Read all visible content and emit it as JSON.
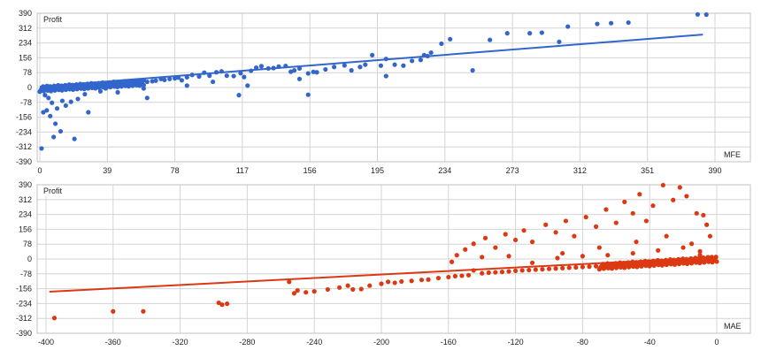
{
  "colors": {
    "mfe": "#3366cc",
    "mae": "#dc3912",
    "grid": "#d4d4d4"
  },
  "chart_data": [
    {
      "type": "scatter",
      "ylabel": "Profit",
      "xlabel": "MFE",
      "xlim": [
        0,
        390
      ],
      "ylim": [
        -390,
        390
      ],
      "xticks": [
        0,
        39,
        78,
        117,
        156,
        195,
        234,
        273,
        312,
        351,
        390
      ],
      "yticks": [
        390,
        312,
        234,
        156,
        78,
        0,
        -78,
        -156,
        -234,
        -312,
        -390
      ],
      "grid": true,
      "trend": {
        "x": [
          0,
          383
        ],
        "y": [
          4,
          278
        ]
      },
      "points": [
        [
          380,
          384
        ],
        [
          385,
          383
        ],
        [
          340,
          341
        ],
        [
          330,
          338
        ],
        [
          322,
          334
        ],
        [
          305,
          320
        ],
        [
          290,
          288
        ],
        [
          283,
          285
        ],
        [
          270,
          285
        ],
        [
          260,
          250
        ],
        [
          237,
          254
        ],
        [
          232,
          230
        ],
        [
          226,
          183
        ],
        [
          224,
          165
        ],
        [
          222,
          170
        ],
        [
          220,
          145
        ],
        [
          215,
          140
        ],
        [
          210,
          115
        ],
        [
          205,
          120
        ],
        [
          200,
          150
        ],
        [
          197,
          115
        ],
        [
          192,
          170
        ],
        [
          188,
          120
        ],
        [
          185,
          108
        ],
        [
          180,
          90
        ],
        [
          176,
          116
        ],
        [
          170,
          108
        ],
        [
          165,
          95
        ],
        [
          160,
          80
        ],
        [
          158,
          82
        ],
        [
          155,
          74
        ],
        [
          150,
          100
        ],
        [
          147,
          90
        ],
        [
          145,
          83
        ],
        [
          142,
          113
        ],
        [
          138,
          110
        ],
        [
          135,
          102
        ],
        [
          132,
          100
        ],
        [
          128,
          112
        ],
        [
          125,
          104
        ],
        [
          122,
          88
        ],
        [
          118,
          55
        ],
        [
          116,
          75
        ],
        [
          112,
          60
        ],
        [
          108,
          62
        ],
        [
          105,
          85
        ],
        [
          102,
          80
        ],
        [
          98,
          62
        ],
        [
          95,
          78
        ],
        [
          92,
          58
        ],
        [
          88,
          66
        ],
        [
          85,
          54
        ],
        [
          82,
          38
        ],
        [
          80,
          52
        ],
        [
          78,
          48
        ],
        [
          75,
          45
        ],
        [
          72,
          40
        ],
        [
          70,
          45
        ],
        [
          67,
          36
        ],
        [
          65,
          33
        ],
        [
          62,
          30
        ],
        [
          60,
          38
        ],
        [
          57,
          28
        ],
        [
          55,
          26
        ],
        [
          52,
          24
        ],
        [
          50,
          22
        ],
        [
          48,
          20
        ],
        [
          45,
          18
        ],
        [
          42,
          16
        ],
        [
          40,
          14
        ],
        [
          38,
          12
        ],
        [
          35,
          12
        ],
        [
          33,
          10
        ],
        [
          30,
          8
        ],
        [
          28,
          6
        ],
        [
          26,
          5
        ],
        [
          24,
          4
        ],
        [
          22,
          3
        ],
        [
          20,
          2
        ],
        [
          18,
          0
        ],
        [
          16,
          -2
        ],
        [
          14,
          -3
        ],
        [
          12,
          -4
        ],
        [
          10,
          -5
        ],
        [
          8,
          -6
        ],
        [
          6,
          -4
        ],
        [
          4,
          -3
        ],
        [
          2,
          -2
        ],
        [
          3,
          -40
        ],
        [
          5,
          -55
        ],
        [
          7,
          -80
        ],
        [
          4,
          -120
        ],
        [
          6,
          -150
        ],
        [
          9,
          -190
        ],
        [
          12,
          -230
        ],
        [
          2,
          -130
        ],
        [
          1,
          -320
        ],
        [
          8,
          -260
        ],
        [
          20,
          -270
        ],
        [
          28,
          -130
        ],
        [
          15,
          -95
        ],
        [
          18,
          -75
        ],
        [
          22,
          -60
        ],
        [
          10,
          -110
        ],
        [
          13,
          -70
        ],
        [
          26,
          -35
        ],
        [
          35,
          -20
        ],
        [
          38,
          -5
        ],
        [
          60,
          -5
        ],
        [
          115,
          -40
        ],
        [
          155,
          -38
        ],
        [
          100,
          30
        ],
        [
          150,
          45
        ],
        [
          120,
          10
        ],
        [
          200,
          60
        ],
        [
          250,
          90
        ],
        [
          300,
          240
        ],
        [
          62,
          -55
        ],
        [
          45,
          -25
        ],
        [
          85,
          10
        ]
      ]
    },
    {
      "type": "scatter",
      "ylabel": "Profit",
      "xlabel": "MAE",
      "xlim": [
        -400,
        0
      ],
      "ylim": [
        -390,
        390
      ],
      "xticks": [
        -400,
        -360,
        -320,
        -280,
        -240,
        -200,
        -160,
        -120,
        -80,
        -40,
        0
      ],
      "yticks": [
        390,
        312,
        234,
        156,
        78,
        0,
        -78,
        -156,
        -234,
        -312,
        -390
      ],
      "grid": true,
      "trend": {
        "x": [
          -398,
          0
        ],
        "y": [
          -172,
          10
        ]
      },
      "points": [
        [
          -395,
          -310
        ],
        [
          -360,
          -275
        ],
        [
          -342,
          -275
        ],
        [
          -297,
          -230
        ],
        [
          -295,
          -240
        ],
        [
          -292,
          -235
        ],
        [
          -255,
          -120
        ],
        [
          -252,
          -180
        ],
        [
          -250,
          -165
        ],
        [
          -245,
          -175
        ],
        [
          -240,
          -170
        ],
        [
          -232,
          -160
        ],
        [
          -225,
          -150
        ],
        [
          -220,
          -140
        ],
        [
          -217,
          -160
        ],
        [
          -212,
          -158
        ],
        [
          -207,
          -140
        ],
        [
          -200,
          -130
        ],
        [
          -196,
          -120
        ],
        [
          -192,
          -125
        ],
        [
          -188,
          -118
        ],
        [
          -182,
          -115
        ],
        [
          -176,
          -110
        ],
        [
          -172,
          -108
        ],
        [
          -166,
          -100
        ],
        [
          -160,
          -95
        ],
        [
          -156,
          -90
        ],
        [
          -152,
          -88
        ],
        [
          -148,
          -85
        ],
        [
          -145,
          -60
        ],
        [
          -140,
          -75
        ],
        [
          -136,
          -72
        ],
        [
          -132,
          -70
        ],
        [
          -128,
          -68
        ],
        [
          -124,
          -65
        ],
        [
          -120,
          -62
        ],
        [
          -116,
          -60
        ],
        [
          -112,
          -58
        ],
        [
          -108,
          -56
        ],
        [
          -104,
          -54
        ],
        [
          -100,
          -52
        ],
        [
          -96,
          -50
        ],
        [
          -92,
          -48
        ],
        [
          -88,
          -46
        ],
        [
          -84,
          -44
        ],
        [
          -80,
          -42
        ],
        [
          -76,
          -40
        ],
        [
          -72,
          -38
        ],
        [
          -68,
          -36
        ],
        [
          -64,
          -34
        ],
        [
          -60,
          -32
        ],
        [
          -56,
          -30
        ],
        [
          -52,
          -28
        ],
        [
          -48,
          -26
        ],
        [
          -44,
          -24
        ],
        [
          -40,
          -22
        ],
        [
          -36,
          -20
        ],
        [
          -32,
          -18
        ],
        [
          -28,
          -16
        ],
        [
          -24,
          -14
        ],
        [
          -20,
          -12
        ],
        [
          -16,
          -10
        ],
        [
          -12,
          -8
        ],
        [
          -8,
          -6
        ],
        [
          -4,
          -4
        ],
        [
          -2,
          -2
        ],
        [
          -155,
          20
        ],
        [
          -150,
          50
        ],
        [
          -145,
          80
        ],
        [
          -138,
          110
        ],
        [
          -132,
          60
        ],
        [
          -126,
          130
        ],
        [
          -120,
          100
        ],
        [
          -115,
          150
        ],
        [
          -110,
          90
        ],
        [
          -102,
          180
        ],
        [
          -96,
          140
        ],
        [
          -90,
          200
        ],
        [
          -85,
          120
        ],
        [
          -78,
          220
        ],
        [
          -72,
          170
        ],
        [
          -66,
          260
        ],
        [
          -60,
          190
        ],
        [
          -55,
          300
        ],
        [
          -50,
          240
        ],
        [
          -46,
          340
        ],
        [
          -42,
          200
        ],
        [
          -38,
          280
        ],
        [
          -32,
          388
        ],
        [
          -26,
          310
        ],
        [
          -22,
          376
        ],
        [
          -18,
          330
        ],
        [
          -12,
          240
        ],
        [
          -8,
          230
        ],
        [
          -6,
          180
        ],
        [
          -4,
          120
        ],
        [
          -92,
          30
        ],
        [
          -70,
          60
        ],
        [
          -48,
          90
        ],
        [
          -30,
          120
        ],
        [
          -15,
          80
        ],
        [
          -10,
          40
        ],
        [
          -158,
          -15
        ],
        [
          -140,
          10
        ],
        [
          -124,
          15
        ],
        [
          -110,
          -20
        ],
        [
          -95,
          5
        ],
        [
          -80,
          15
        ],
        [
          -65,
          20
        ],
        [
          -50,
          30
        ],
        [
          -35,
          45
        ],
        [
          -20,
          60
        ],
        [
          -10,
          20
        ],
        [
          -3,
          10
        ]
      ]
    }
  ]
}
